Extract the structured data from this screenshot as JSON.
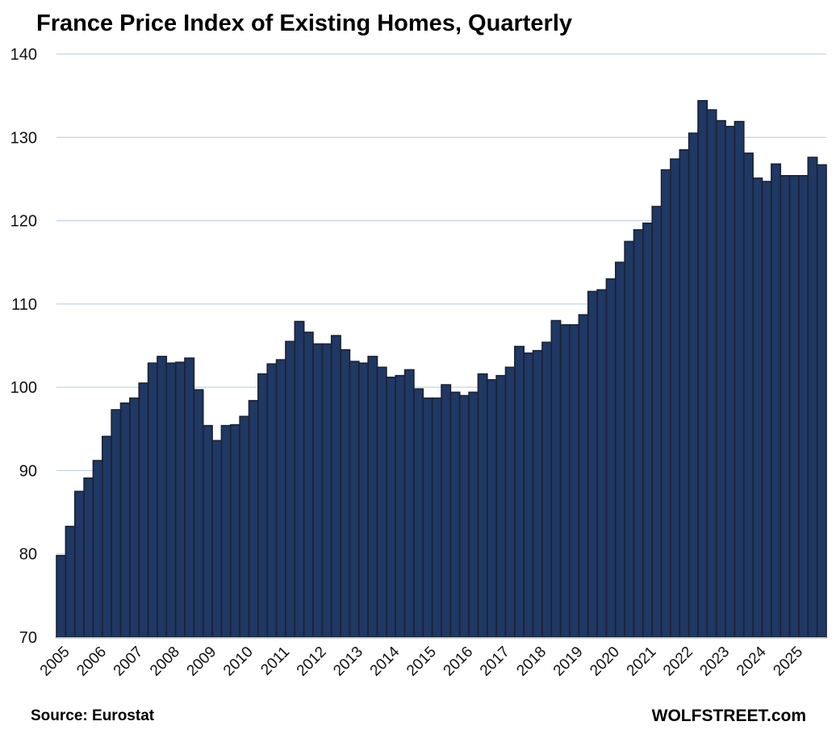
{
  "chart_data": {
    "type": "bar",
    "title": "France Price Index of Existing Homes, Quarterly",
    "xlabel": "",
    "ylabel": "",
    "ylim": [
      70,
      140
    ],
    "yticks": [
      "70",
      "80",
      "90",
      "100",
      "110",
      "120",
      "130",
      "140"
    ],
    "ytick_values": [
      70,
      80,
      90,
      100,
      110,
      120,
      130,
      140
    ],
    "grid": true,
    "x_tick_labels": [
      "2005",
      "2006",
      "2007",
      "2008",
      "2009",
      "2010",
      "2011",
      "2012",
      "2013",
      "2014",
      "2015",
      "2016",
      "2017",
      "2018",
      "2019",
      "2020",
      "2021",
      "2022",
      "2023",
      "2024",
      "2025"
    ],
    "periods_per_label": 4,
    "series": [
      {
        "name": "France Price Index of Existing Homes",
        "color": "#1f3864",
        "values": [
          79.8,
          83.3,
          87.5,
          89.1,
          91.2,
          94.1,
          97.3,
          98.1,
          98.7,
          100.5,
          102.9,
          103.7,
          102.9,
          103.0,
          103.5,
          99.7,
          95.4,
          93.6,
          95.4,
          95.5,
          96.5,
          98.4,
          101.6,
          102.8,
          103.3,
          105.5,
          107.9,
          106.6,
          105.2,
          105.2,
          106.2,
          104.5,
          103.1,
          102.9,
          103.7,
          102.4,
          101.2,
          101.4,
          102.1,
          99.8,
          98.7,
          98.7,
          100.3,
          99.4,
          99.0,
          99.4,
          101.6,
          100.9,
          101.4,
          102.4,
          104.9,
          104.1,
          104.4,
          105.4,
          108.0,
          107.5,
          107.5,
          108.7,
          111.5,
          111.7,
          113.0,
          115.0,
          117.5,
          118.9,
          119.7,
          121.7,
          126.1,
          127.4,
          128.5,
          130.5,
          134.4,
          133.3,
          132.0,
          131.3,
          131.9,
          128.1,
          125.1,
          124.7,
          126.8,
          125.4,
          125.4,
          125.4,
          127.6,
          126.7
        ]
      }
    ]
  },
  "footer": {
    "source": "Source: Eurostat",
    "brand": "WOLFSTREET.com"
  },
  "colors": {
    "bar_fill": "#1f3864",
    "bar_stroke": "#1b2233",
    "grid": "#b7cadd"
  }
}
